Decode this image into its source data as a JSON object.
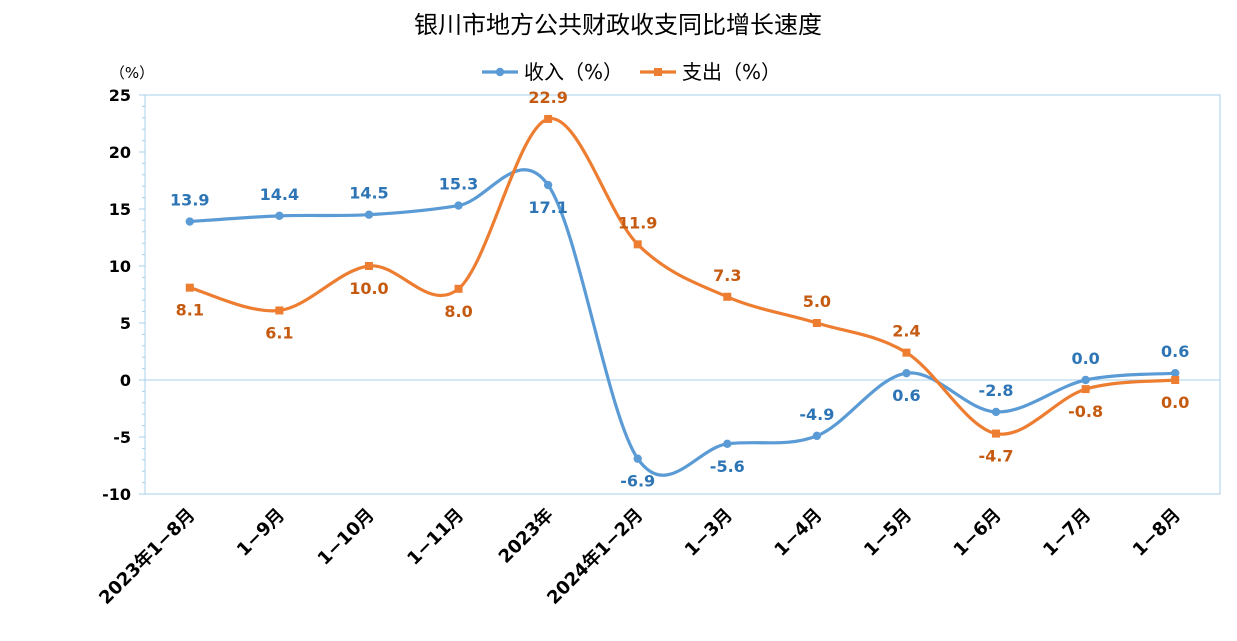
{
  "chart_data": {
    "type": "line",
    "title": "银川市地方公共财政收支同比增长速度",
    "ylabel": "（%）",
    "ylim": [
      -10,
      25
    ],
    "yticks": [
      -10,
      -5,
      0,
      5,
      10,
      15,
      20,
      25
    ],
    "grid": false,
    "legend_position": "top",
    "categories": [
      "2023年1−8月",
      "1−9月",
      "1−10月",
      "1−11月",
      "2023年",
      "2024年1−2月",
      "1−3月",
      "1−4月",
      "1−5月",
      "1−6月",
      "1−7月",
      "1−8月"
    ],
    "series": [
      {
        "name": "收入（%）",
        "color": "#5B9BD5",
        "label_color": "#2E75B6",
        "values": [
          13.9,
          14.4,
          14.5,
          15.3,
          17.1,
          -6.9,
          -5.6,
          -4.9,
          0.6,
          -2.8,
          0.0,
          0.6
        ],
        "labels": [
          "13.9",
          "14.4",
          "14.5",
          "15.3",
          "17.1",
          "-6.9",
          "-5.6",
          "-4.9",
          "0.6",
          "-2.8",
          "0.0",
          "0.6"
        ]
      },
      {
        "name": "支出（%）",
        "color": "#ED7D31",
        "label_color": "#C55A11",
        "values": [
          8.1,
          6.1,
          10.0,
          8.0,
          22.9,
          11.9,
          7.3,
          5.0,
          2.4,
          -4.7,
          -0.8,
          0.0
        ],
        "labels": [
          "8.1",
          "6.1",
          "10.0",
          "8.0",
          "22.9",
          "11.9",
          "7.3",
          "5.0",
          "2.4",
          "-4.7",
          "-0.8",
          "0.0"
        ]
      }
    ]
  }
}
